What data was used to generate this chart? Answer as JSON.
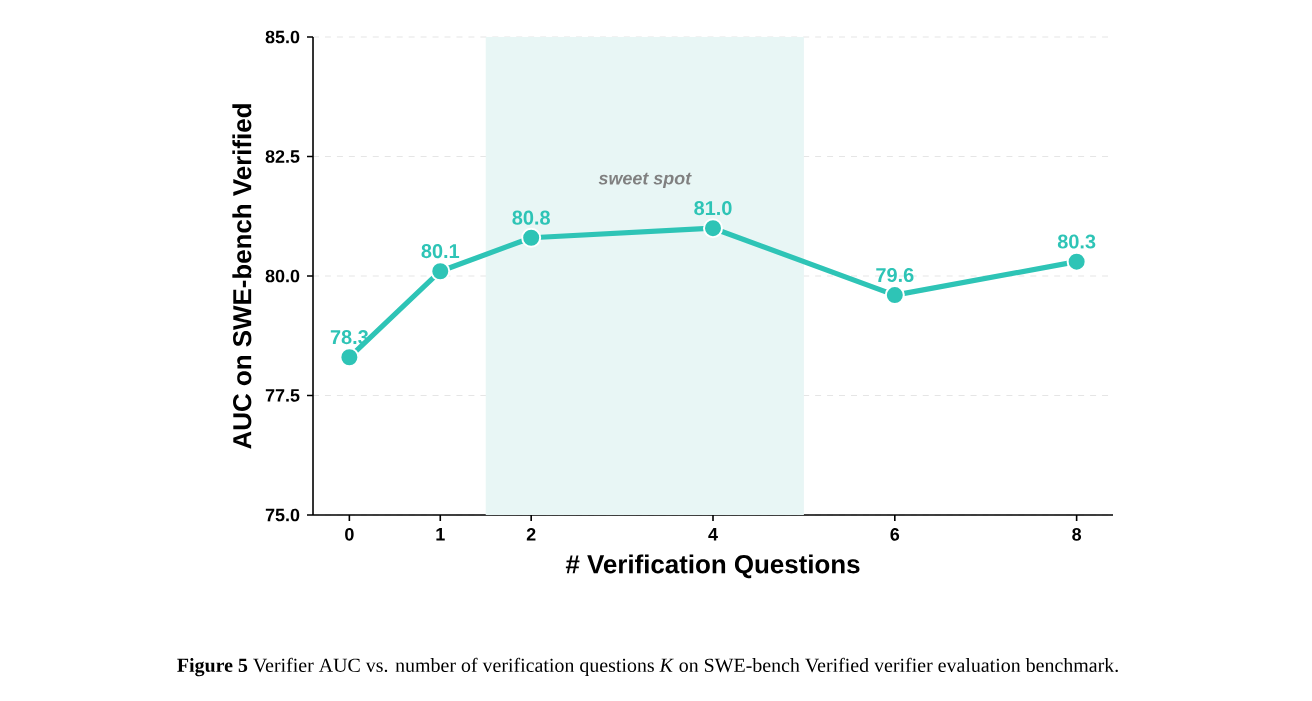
{
  "chart_data": {
    "type": "line",
    "xlabel": "# Verification Questions",
    "ylabel": "AUC on SWE-bench Verified",
    "x": [
      0,
      1,
      2,
      4,
      6,
      8
    ],
    "values": [
      78.3,
      80.1,
      80.8,
      81.0,
      79.6,
      80.3
    ],
    "color": "#2ec4b6",
    "xlim": [
      -0.4,
      8.4
    ],
    "xticks": [
      0,
      1,
      2,
      4,
      6,
      8
    ],
    "ylim": [
      75,
      85
    ],
    "yticks": [
      {
        "value": 75,
        "label": "75.0"
      },
      {
        "value": 77.5,
        "label": "77.5"
      },
      {
        "value": 80,
        "label": "80.0"
      },
      {
        "value": 82.5,
        "label": "82.5"
      },
      {
        "value": 85,
        "label": "85.0"
      }
    ],
    "value_labels": [
      "78.3",
      "80.1",
      "80.8",
      "81.0",
      "79.6",
      "80.3"
    ],
    "grid": "y",
    "marker": "circle",
    "line_style": "solid",
    "bands": [
      {
        "axis": "x",
        "from": 1.5,
        "to": 5.0,
        "label": "sweet spot",
        "color": "#e8f6f5"
      }
    ],
    "annotations": [
      "**Figure 5**  Verifier AUC vs. number of verification questions *K* on SWE-bench Verified verifier evaluation benchmark."
    ]
  }
}
